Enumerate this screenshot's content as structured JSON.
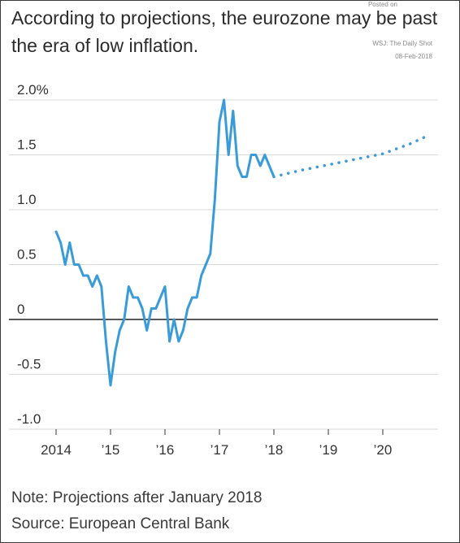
{
  "header": {
    "title": "According to projections, the eurozone may be past the era of low inflation.",
    "posted_on": "Posted on",
    "source_credit": "WSJ: The Daily Shot",
    "post_date": "08-Feb-2018"
  },
  "footer": {
    "note": "Note: Projections after January 2018",
    "source": "Source: European Central Bank"
  },
  "colors": {
    "series": "#3a9bd9",
    "grid": "#d9d9d9",
    "zero_line": "#222222"
  },
  "chart_data": {
    "type": "line",
    "title": "According to projections, the eurozone may be past the era of low inflation.",
    "xlabel": "",
    "ylabel": "",
    "xlim": [
      2014,
      2021
    ],
    "ylim": [
      -1.0,
      2.0
    ],
    "grid": true,
    "x_ticks": [
      {
        "value": 2014,
        "label": "2014"
      },
      {
        "value": 2015,
        "label": "’15"
      },
      {
        "value": 2016,
        "label": "’16"
      },
      {
        "value": 2017,
        "label": "’17"
      },
      {
        "value": 2018,
        "label": "’18"
      },
      {
        "value": 2019,
        "label": "’19"
      },
      {
        "value": 2020,
        "label": "’20"
      }
    ],
    "y_ticks": [
      {
        "value": 2.0,
        "label": "2.0%"
      },
      {
        "value": 1.5,
        "label": "1.5"
      },
      {
        "value": 1.0,
        "label": "1.0"
      },
      {
        "value": 0.5,
        "label": "0.5"
      },
      {
        "value": 0.0,
        "label": "0"
      },
      {
        "value": -0.5,
        "label": "-0.5"
      },
      {
        "value": -1.0,
        "label": "-1.0"
      }
    ],
    "series": [
      {
        "style": "solid",
        "points": [
          [
            2014.0,
            0.8
          ],
          [
            2014.083,
            0.7
          ],
          [
            2014.167,
            0.5
          ],
          [
            2014.25,
            0.7
          ],
          [
            2014.333,
            0.5
          ],
          [
            2014.417,
            0.5
          ],
          [
            2014.5,
            0.4
          ],
          [
            2014.583,
            0.4
          ],
          [
            2014.667,
            0.3
          ],
          [
            2014.75,
            0.4
          ],
          [
            2014.833,
            0.3
          ],
          [
            2014.917,
            -0.2
          ],
          [
            2015.0,
            -0.6
          ],
          [
            2015.083,
            -0.3
          ],
          [
            2015.167,
            -0.1
          ],
          [
            2015.25,
            0.0
          ],
          [
            2015.333,
            0.3
          ],
          [
            2015.417,
            0.2
          ],
          [
            2015.5,
            0.2
          ],
          [
            2015.583,
            0.1
          ],
          [
            2015.667,
            -0.1
          ],
          [
            2015.75,
            0.1
          ],
          [
            2015.833,
            0.1
          ],
          [
            2015.917,
            0.2
          ],
          [
            2016.0,
            0.3
          ],
          [
            2016.083,
            -0.2
          ],
          [
            2016.167,
            0.0
          ],
          [
            2016.25,
            -0.2
          ],
          [
            2016.333,
            -0.1
          ],
          [
            2016.417,
            0.1
          ],
          [
            2016.5,
            0.2
          ],
          [
            2016.583,
            0.2
          ],
          [
            2016.667,
            0.4
          ],
          [
            2016.75,
            0.5
          ],
          [
            2016.833,
            0.6
          ],
          [
            2016.917,
            1.1
          ],
          [
            2017.0,
            1.8
          ],
          [
            2017.083,
            2.0
          ],
          [
            2017.167,
            1.5
          ],
          [
            2017.25,
            1.9
          ],
          [
            2017.333,
            1.4
          ],
          [
            2017.417,
            1.3
          ],
          [
            2017.5,
            1.3
          ],
          [
            2017.583,
            1.5
          ],
          [
            2017.667,
            1.5
          ],
          [
            2017.75,
            1.4
          ],
          [
            2017.833,
            1.5
          ],
          [
            2017.917,
            1.4
          ],
          [
            2018.0,
            1.3
          ]
        ]
      },
      {
        "style": "dotted",
        "points": [
          [
            2018.0,
            1.3
          ],
          [
            2018.5,
            1.36
          ],
          [
            2019.0,
            1.41
          ],
          [
            2019.5,
            1.46
          ],
          [
            2020.0,
            1.51
          ],
          [
            2020.5,
            1.6
          ],
          [
            2020.85,
            1.68
          ]
        ]
      }
    ]
  }
}
